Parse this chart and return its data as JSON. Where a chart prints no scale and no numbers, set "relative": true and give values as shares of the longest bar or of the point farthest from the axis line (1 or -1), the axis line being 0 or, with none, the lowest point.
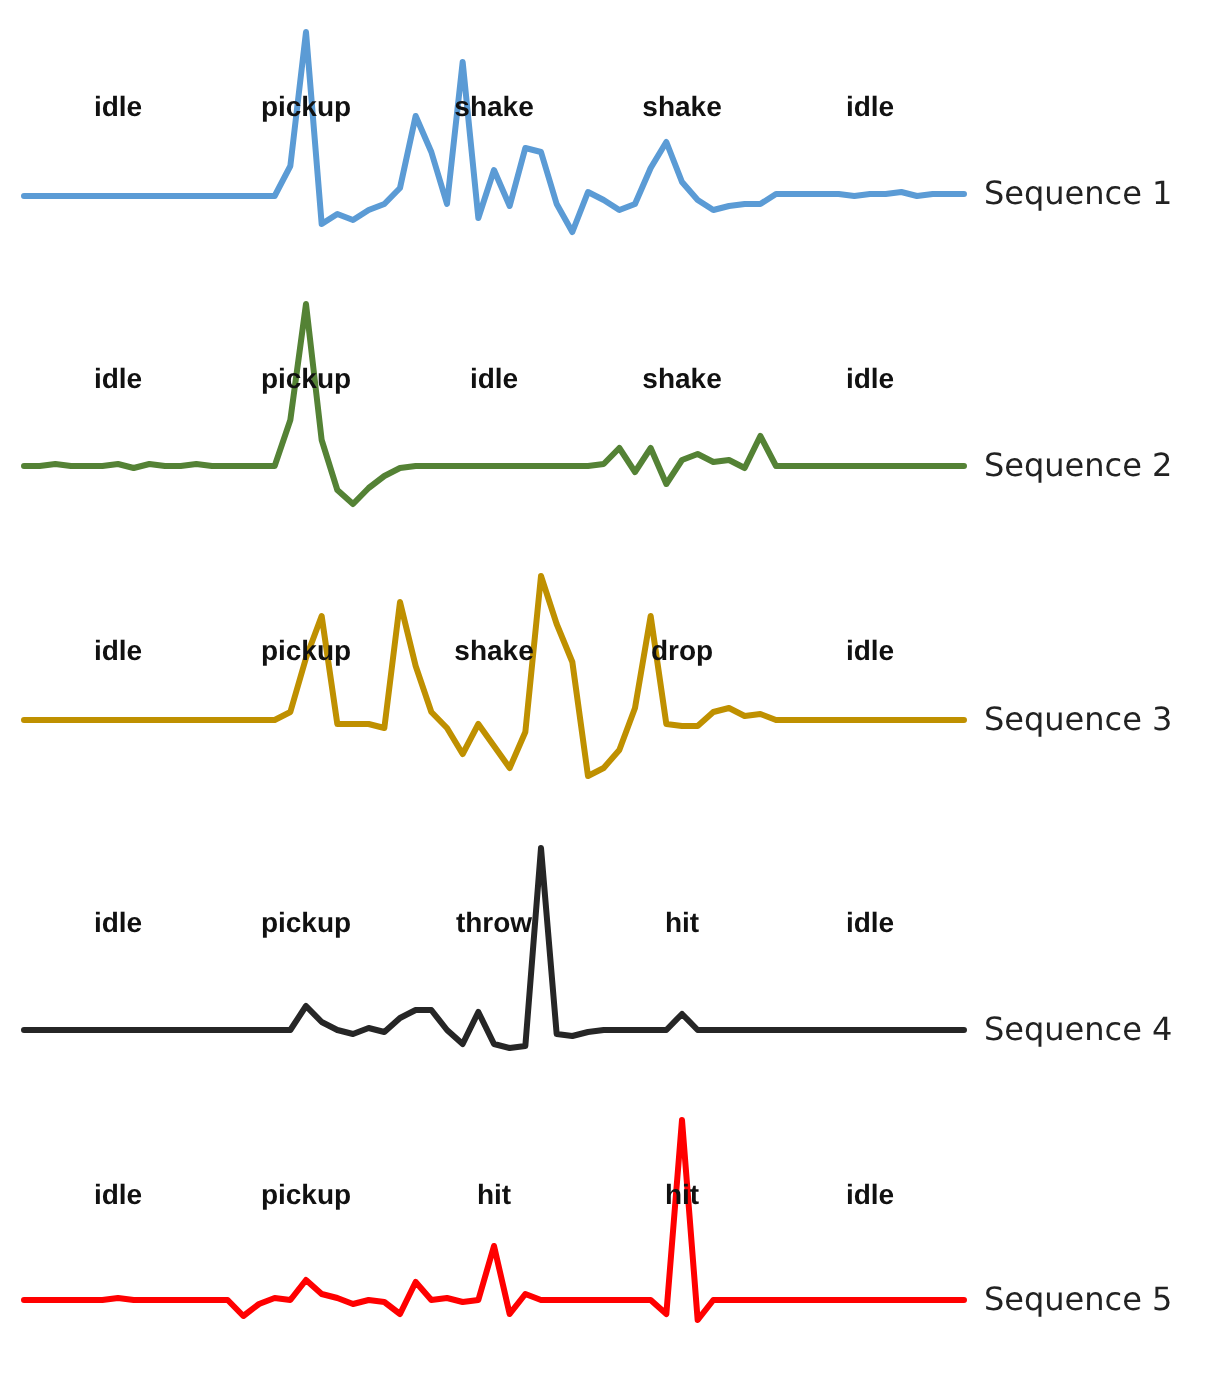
{
  "chart_data": [
    {
      "type": "line",
      "relative": true,
      "categories": [
        null,
        null,
        null,
        null,
        null,
        null,
        null,
        null,
        null,
        null,
        null,
        null,
        null,
        null,
        null,
        null,
        null,
        null,
        null,
        null,
        null,
        null,
        null,
        null,
        null,
        null,
        null,
        null,
        null,
        null,
        null,
        null,
        null,
        null,
        null,
        null,
        null,
        null,
        null,
        null,
        null,
        null,
        null,
        null,
        null,
        null,
        null,
        null,
        null,
        null,
        null,
        null,
        null,
        null,
        null,
        null,
        null,
        null,
        null,
        null,
        null
      ],
      "series": [
        {
          "name": "Sequence 1",
          "color": "#5b9bd5",
          "values": [
            0.18,
            0.18,
            0.18,
            0.18,
            0.18,
            0.18,
            0.18,
            0.18,
            0.18,
            0.18,
            0.18,
            0.18,
            0.18,
            0.18,
            0.18,
            0.18,
            0.18,
            0.33,
            1.0,
            0.04,
            0.09,
            0.06,
            0.11,
            0.14,
            0.22,
            0.58,
            0.4,
            0.14,
            0.85,
            0.07,
            0.31,
            0.13,
            0.42,
            0.4,
            0.14,
            0,
            0.2,
            0.16,
            0.11,
            0.14,
            0.32,
            0.45,
            0.25,
            0.16,
            0.11,
            0.13,
            0.14,
            0.14,
            0.19,
            0.19,
            0.19,
            0.19,
            0.19,
            0.18,
            0.19,
            0.19,
            0.2,
            0.18,
            0.19,
            0.19,
            0.19
          ]
        }
      ],
      "annotations": [
        "idle",
        "pickup",
        "shake",
        "shake",
        "idle"
      ]
    },
    {
      "type": "line",
      "relative": true,
      "categories": [
        null,
        null,
        null,
        null,
        null,
        null,
        null,
        null,
        null,
        null,
        null,
        null,
        null,
        null,
        null,
        null,
        null,
        null,
        null,
        null,
        null,
        null,
        null,
        null,
        null,
        null,
        null,
        null,
        null,
        null,
        null,
        null,
        null,
        null,
        null,
        null,
        null,
        null,
        null,
        null,
        null,
        null,
        null,
        null,
        null,
        null,
        null,
        null,
        null,
        null,
        null,
        null,
        null,
        null,
        null,
        null,
        null,
        null,
        null,
        null,
        null
      ],
      "series": [
        {
          "name": "Sequence 2",
          "color": "#548235",
          "values": [
            0.19,
            0.19,
            0.2,
            0.19,
            0.19,
            0.19,
            0.2,
            0.18,
            0.2,
            0.19,
            0.19,
            0.2,
            0.19,
            0.19,
            0.19,
            0.19,
            0.19,
            0.42,
            1.0,
            0.32,
            0.07,
            0,
            0.08,
            0.14,
            0.18,
            0.19,
            0.19,
            0.19,
            0.19,
            0.19,
            0.19,
            0.19,
            0.19,
            0.19,
            0.19,
            0.19,
            0.19,
            0.2,
            0.28,
            0.16,
            0.28,
            0.1,
            0.22,
            0.25,
            0.21,
            0.22,
            0.18,
            0.34,
            0.19,
            0.19,
            0.19,
            0.19,
            0.19,
            0.19,
            0.19,
            0.19,
            0.19,
            0.19,
            0.19,
            0.19,
            0.19
          ]
        }
      ],
      "annotations": [
        "idle",
        "pickup",
        "idle",
        "shake",
        "idle"
      ]
    },
    {
      "type": "line",
      "relative": true,
      "categories": [
        null,
        null,
        null,
        null,
        null,
        null,
        null,
        null,
        null,
        null,
        null,
        null,
        null,
        null,
        null,
        null,
        null,
        null,
        null,
        null,
        null,
        null,
        null,
        null,
        null,
        null,
        null,
        null,
        null,
        null,
        null,
        null,
        null,
        null,
        null,
        null,
        null,
        null,
        null,
        null,
        null,
        null,
        null,
        null,
        null,
        null,
        null,
        null,
        null,
        null,
        null,
        null,
        null,
        null,
        null,
        null,
        null,
        null,
        null,
        null,
        null
      ],
      "series": [
        {
          "name": "Sequence 3",
          "color": "#bf9000",
          "values": [
            0.28,
            0.28,
            0.28,
            0.28,
            0.28,
            0.28,
            0.28,
            0.28,
            0.28,
            0.28,
            0.28,
            0.28,
            0.28,
            0.28,
            0.28,
            0.28,
            0.28,
            0.32,
            0.59,
            0.8,
            0.26,
            0.26,
            0.26,
            0.24,
            0.87,
            0.55,
            0.32,
            0.24,
            0.11,
            0.26,
            0.15,
            0.04,
            0.22,
            1.0,
            0.76,
            0.57,
            0,
            0.04,
            0.13,
            0.34,
            0.8,
            0.26,
            0.25,
            0.25,
            0.32,
            0.34,
            0.3,
            0.31,
            0.28,
            0.28,
            0.28,
            0.28,
            0.28,
            0.28,
            0.28,
            0.28,
            0.28,
            0.28,
            0.28,
            0.28,
            0.28
          ]
        }
      ],
      "annotations": [
        "idle",
        "pickup",
        "shake",
        "drop",
        "idle"
      ]
    },
    {
      "type": "line",
      "relative": true,
      "categories": [
        null,
        null,
        null,
        null,
        null,
        null,
        null,
        null,
        null,
        null,
        null,
        null,
        null,
        null,
        null,
        null,
        null,
        null,
        null,
        null,
        null,
        null,
        null,
        null,
        null,
        null,
        null,
        null,
        null,
        null,
        null,
        null,
        null,
        null,
        null,
        null,
        null,
        null,
        null,
        null,
        null,
        null,
        null,
        null,
        null,
        null,
        null,
        null,
        null,
        null,
        null,
        null,
        null,
        null,
        null,
        null,
        null,
        null,
        null,
        null,
        null
      ],
      "series": [
        {
          "name": "Sequence 4",
          "color": "#262626",
          "values": [
            0.09,
            0.09,
            0.09,
            0.09,
            0.09,
            0.09,
            0.09,
            0.09,
            0.09,
            0.09,
            0.09,
            0.09,
            0.09,
            0.09,
            0.09,
            0.09,
            0.09,
            0.09,
            0.21,
            0.13,
            0.09,
            0.07,
            0.1,
            0.08,
            0.15,
            0.19,
            0.19,
            0.09,
            0.02,
            0.18,
            0.02,
            0,
            0.01,
            1.0,
            0.07,
            0.06,
            0.08,
            0.09,
            0.09,
            0.09,
            0.09,
            0.09,
            0.17,
            0.09,
            0.09,
            0.09,
            0.09,
            0.09,
            0.09,
            0.09,
            0.09,
            0.09,
            0.09,
            0.09,
            0.09,
            0.09,
            0.09,
            0.09,
            0.09,
            0.09,
            0.09
          ]
        }
      ],
      "annotations": [
        "idle",
        "pickup",
        "throw",
        "hit",
        "idle"
      ]
    },
    {
      "type": "line",
      "relative": true,
      "categories": [
        null,
        null,
        null,
        null,
        null,
        null,
        null,
        null,
        null,
        null,
        null,
        null,
        null,
        null,
        null,
        null,
        null,
        null,
        null,
        null,
        null,
        null,
        null,
        null,
        null,
        null,
        null,
        null,
        null,
        null,
        null,
        null,
        null,
        null,
        null,
        null,
        null,
        null,
        null,
        null,
        null,
        null,
        null,
        null,
        null,
        null,
        null,
        null,
        null,
        null,
        null,
        null,
        null,
        null,
        null,
        null,
        null,
        null,
        null,
        null,
        null
      ],
      "series": [
        {
          "name": "Sequence 5",
          "color": "#ff0000",
          "values": [
            0.1,
            0.1,
            0.1,
            0.1,
            0.1,
            0.1,
            0.11,
            0.1,
            0.1,
            0.1,
            0.1,
            0.1,
            0.1,
            0.1,
            0.02,
            0.08,
            0.11,
            0.1,
            0.2,
            0.13,
            0.11,
            0.08,
            0.1,
            0.09,
            0.03,
            0.19,
            0.1,
            0.11,
            0.09,
            0.1,
            0.37,
            0.03,
            0.13,
            0.1,
            0.1,
            0.1,
            0.1,
            0.1,
            0.1,
            0.1,
            0.1,
            0.03,
            1.0,
            0,
            0.1,
            0.1,
            0.1,
            0.1,
            0.1,
            0.1,
            0.1,
            0.1,
            0.1,
            0.1,
            0.1,
            0.1,
            0.1,
            0.1,
            0.1,
            0.1,
            0.1
          ]
        }
      ],
      "annotations": [
        "idle",
        "pickup",
        "hit",
        "hit",
        "idle"
      ]
    }
  ]
}
